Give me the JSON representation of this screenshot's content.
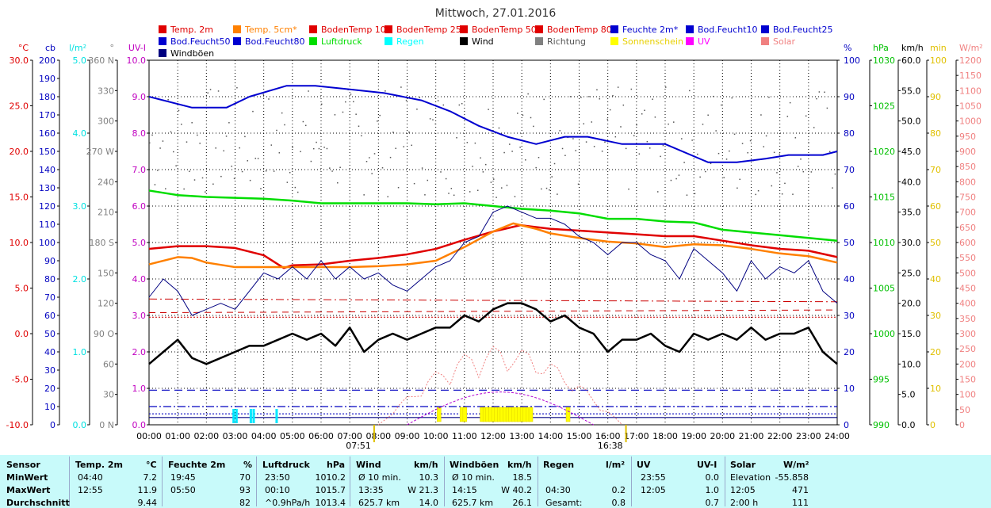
{
  "chart_data": {
    "type": "line",
    "title": "Mittwoch, 27.01.2016",
    "x_ticks": [
      "00:00",
      "01:00",
      "02:00",
      "03:00",
      "04:00",
      "05:00",
      "06:00",
      "07:00",
      "08:00",
      "09:00",
      "10:00",
      "11:00",
      "12:00",
      "13:00",
      "14:00",
      "15:00",
      "16:00",
      "17:00",
      "18:00",
      "19:00",
      "20:00",
      "21:00",
      "22:00",
      "23:00",
      "24:00"
    ],
    "sunrise": "07:51",
    "sunset": "16:38",
    "legend": [
      {
        "label": "Temp. 2m",
        "color": "#e00000"
      },
      {
        "label": "Temp. 5cm*",
        "color": "#ff8000"
      },
      {
        "label": "BodenTemp 10",
        "color": "#e00000"
      },
      {
        "label": "BodenTemp 25",
        "color": "#e00000"
      },
      {
        "label": "BodenTemp 50",
        "color": "#e00000"
      },
      {
        "label": "BodenTemp 80",
        "color": "#e00000"
      },
      {
        "label": "Feuchte 2m*",
        "color": "#0000d0"
      },
      {
        "label": "Bod.Feucht10",
        "color": "#0000d0"
      },
      {
        "label": "Bod.Feucht25",
        "color": "#0000d0"
      },
      {
        "label": "Bod.Feucht50",
        "color": "#0000d0"
      },
      {
        "label": "Bod.Feucht80",
        "color": "#0000d0"
      },
      {
        "label": "Luftdruck",
        "color": "#00dd00"
      },
      {
        "label": "Regen",
        "color": "#00ffff"
      },
      {
        "label": "Wind",
        "color": "#000000"
      },
      {
        "label": "Richtung",
        "color": "#808080"
      },
      {
        "label": "Sonnenschein",
        "color": "#ffff00"
      },
      {
        "label": "UV",
        "color": "#ff00ff"
      },
      {
        "label": "Solar",
        "color": "#f08080"
      },
      {
        "label": "Windböen",
        "color": "#000080"
      }
    ],
    "axes": {
      "temp": {
        "unit": "°C",
        "color": "#e00000",
        "ticks": [
          "30.0",
          "25.0",
          "20.0",
          "15.0",
          "10.0",
          "5.0",
          "0.0",
          "-5.0",
          "-10.0"
        ],
        "range": [
          -10,
          30
        ]
      },
      "cb": {
        "unit": "cb",
        "color": "#0000c0",
        "ticks": [
          "200",
          "190",
          "180",
          "170",
          "160",
          "150",
          "140",
          "130",
          "120",
          "110",
          "100",
          "90",
          "80",
          "70",
          "60",
          "50",
          "40",
          "30",
          "20",
          "10",
          "0"
        ],
        "range": [
          0,
          200
        ]
      },
      "rain": {
        "unit": "l/m²",
        "color": "#00e0e0",
        "ticks": [
          "5.0",
          "4.0",
          "3.0",
          "2.0",
          "1.0",
          "0.0"
        ],
        "range": [
          0,
          5
        ]
      },
      "direction": {
        "unit": "°",
        "color": "#808080",
        "ticks": [
          "360 N",
          "330",
          "300",
          "270 W",
          "240",
          "210",
          "180 S",
          "150",
          "120",
          "90 O",
          "60",
          "30",
          "0 N"
        ],
        "range": [
          0,
          360
        ]
      },
      "uv": {
        "unit": "UV-I",
        "color": "#c000c0",
        "ticks": [
          "10.0",
          "9.0",
          "8.0",
          "7.0",
          "6.0",
          "5.0",
          "4.0",
          "3.0",
          "2.0",
          "1.0",
          "0.0"
        ],
        "range": [
          0,
          10
        ]
      },
      "humidity": {
        "unit": "%",
        "color": "#0000c0",
        "ticks": [
          "100",
          "90",
          "80",
          "70",
          "60",
          "50",
          "40",
          "30",
          "20",
          "10",
          "0"
        ],
        "range": [
          0,
          100
        ]
      },
      "pressure": {
        "unit": "hPa",
        "color": "#00c000",
        "ticks": [
          "1030",
          "1025",
          "1020",
          "1015",
          "1010",
          "1005",
          "1000",
          "995",
          "990"
        ],
        "range": [
          990,
          1030
        ]
      },
      "wind": {
        "unit": "km/h",
        "color": "#000000",
        "ticks": [
          "60.0",
          "55.0",
          "50.0",
          "45.0",
          "40.0",
          "35.0",
          "30.0",
          "25.0",
          "20.0",
          "15.0",
          "10.0",
          "5.0",
          "0.0"
        ],
        "range": [
          0,
          60
        ]
      },
      "minutes": {
        "unit": "min",
        "color": "#e0c000",
        "ticks": [
          "100",
          "90",
          "80",
          "70",
          "60",
          "50",
          "40",
          "30",
          "20",
          "10",
          "0"
        ],
        "range": [
          0,
          100
        ]
      },
      "solar": {
        "unit": "W/m²",
        "color": "#f08080",
        "ticks": [
          "1200",
          "1150",
          "1100",
          "1050",
          "1000",
          "950",
          "900",
          "850",
          "800",
          "750",
          "700",
          "650",
          "600",
          "550",
          "500",
          "450",
          "400",
          "350",
          "300",
          "250",
          "200",
          "150",
          "100",
          "50",
          "0"
        ],
        "range": [
          0,
          1200
        ]
      }
    },
    "series": [
      {
        "name": "Feuchte 2m*",
        "axis": "humidity",
        "color": "#0000d0",
        "x": [
          0,
          1.5,
          2.7,
          3.5,
          4.8,
          5.8,
          7,
          8.2,
          9.5,
          10.5,
          11.5,
          12.5,
          13.5,
          14.5,
          15.3,
          16.5,
          18,
          19.5,
          20.5,
          21.5,
          22.3,
          23.5,
          24
        ],
        "y": [
          90,
          87,
          87,
          90,
          93,
          93,
          92,
          91,
          89,
          86,
          82,
          79,
          77,
          79,
          79,
          77,
          77,
          72,
          72,
          73,
          74,
          74,
          75
        ]
      },
      {
        "name": "Luftdruck",
        "axis": "pressure",
        "color": "#00dd00",
        "x": [
          0,
          1,
          2,
          3,
          4,
          5,
          6,
          7,
          8,
          9,
          10,
          11,
          12,
          13,
          14,
          15,
          16,
          17,
          18,
          19,
          20,
          21,
          22,
          23,
          24
        ],
        "y": [
          1015.7,
          1015.2,
          1015,
          1014.9,
          1014.8,
          1014.6,
          1014.3,
          1014.3,
          1014.3,
          1014.3,
          1014.2,
          1014.3,
          1014,
          1013.7,
          1013.5,
          1013.2,
          1012.6,
          1012.6,
          1012.3,
          1012.2,
          1011.4,
          1011.1,
          1010.8,
          1010.5,
          1010.2
        ]
      },
      {
        "name": "Temp. 2m",
        "axis": "temp",
        "color": "#e00000",
        "x": [
          0,
          1,
          2,
          3,
          4,
          4.7,
          5,
          6,
          7,
          8,
          9,
          10,
          11,
          12,
          12.95,
          14,
          15,
          16,
          17,
          18,
          19,
          20,
          21,
          22,
          23,
          24
        ],
        "y": [
          9.3,
          9.6,
          9.6,
          9.4,
          8.6,
          7.2,
          7.5,
          7.6,
          8.0,
          8.3,
          8.7,
          9.3,
          10.3,
          11.2,
          11.9,
          11.5,
          11.3,
          11.1,
          10.9,
          10.7,
          10.7,
          10.2,
          9.7,
          9.3,
          9.1,
          8.4
        ]
      },
      {
        "name": "Temp. 5cm*",
        "axis": "temp",
        "color": "#ff8000",
        "x": [
          0,
          1,
          1.5,
          2,
          3,
          4,
          5,
          6,
          7,
          8,
          9,
          10,
          11,
          12,
          12.7,
          13.5,
          14,
          15,
          16,
          17,
          18,
          19,
          20,
          21,
          22,
          23,
          24
        ],
        "y": [
          7.6,
          8.4,
          8.3,
          7.8,
          7.3,
          7.3,
          7.3,
          7.3,
          7.3,
          7.4,
          7.6,
          8.0,
          9.5,
          11.2,
          12.1,
          11.5,
          11.0,
          10.5,
          10.1,
          9.9,
          9.5,
          9.8,
          9.7,
          9.3,
          8.8,
          8.5,
          7.8
        ]
      },
      {
        "name": "Wind",
        "axis": "wind",
        "color": "#000000",
        "x": [
          0,
          0.5,
          1,
          1.5,
          2,
          2.5,
          3,
          3.5,
          4,
          4.5,
          5,
          5.5,
          6,
          6.5,
          7,
          7.5,
          8,
          8.5,
          9,
          9.5,
          10,
          10.5,
          11,
          11.5,
          12,
          12.5,
          13,
          13.5,
          14,
          14.5,
          15,
          15.5,
          16,
          16.5,
          17,
          17.5,
          18,
          18.5,
          19,
          19.5,
          20,
          20.5,
          21,
          21.5,
          22,
          22.5,
          23,
          23.5,
          24
        ],
        "y": [
          10,
          12,
          14,
          11,
          10,
          11,
          12,
          13,
          13,
          14,
          15,
          14,
          15,
          13,
          16,
          12,
          14,
          15,
          14,
          15,
          16,
          16,
          18,
          17,
          19,
          20,
          20,
          19,
          17,
          18,
          16,
          15,
          12,
          14,
          14,
          15,
          13,
          12,
          15,
          14,
          15,
          14,
          16,
          14,
          15,
          15,
          16,
          12,
          10
        ]
      },
      {
        "name": "Windböen",
        "axis": "wind",
        "color": "#000080",
        "x": [
          0,
          0.5,
          1,
          1.5,
          2,
          2.5,
          3,
          3.5,
          4,
          4.5,
          5,
          5.5,
          6,
          6.5,
          7,
          7.5,
          8,
          8.5,
          9,
          9.5,
          10,
          10.5,
          11,
          11.5,
          12,
          12.5,
          13,
          13.5,
          14,
          14.5,
          15,
          15.5,
          16,
          16.5,
          17,
          17.5,
          18,
          18.5,
          19,
          19.5,
          20,
          20.5,
          21,
          21.5,
          22,
          22.5,
          23,
          23.5,
          24
        ],
        "y": [
          21,
          24,
          22,
          18,
          19,
          20,
          19,
          22,
          25,
          24,
          26,
          24,
          27,
          24,
          26,
          24,
          25,
          23,
          22,
          24,
          26,
          27,
          30,
          31,
          35,
          36,
          35,
          34,
          34,
          33,
          31,
          30,
          28,
          30,
          30,
          28,
          27,
          24,
          29,
          27,
          25,
          22,
          27,
          24,
          26,
          25,
          27,
          22,
          20
        ]
      }
    ],
    "rain_bars_hours": [
      2.95,
      3.05,
      3.55,
      3.65,
      4.45
    ],
    "sunshine_bars_hours": [
      10.1,
      10.9,
      11.0,
      11.6,
      11.7,
      11.8,
      11.9,
      12.0,
      12.1,
      12.2,
      12.3,
      12.4,
      12.5,
      12.6,
      12.7,
      12.8,
      12.9,
      13.0,
      13.1,
      13.2,
      13.3,
      14.6
    ]
  },
  "stats": {
    "headers": {
      "sensor": "Sensor",
      "temp": "Temp. 2m",
      "temp_unit": "°C",
      "hum": "Feuchte 2m",
      "hum_unit": "%",
      "press": "Luftdruck",
      "press_unit": "hPa",
      "wind": "Wind",
      "wind_unit": "km/h",
      "gust": "Windböen",
      "gust_unit": "km/h",
      "rain": "Regen",
      "rain_unit": "l/m²",
      "uv": "UV",
      "uv_unit": "UV-I",
      "solar": "Solar",
      "solar_unit": "W/m²"
    },
    "rows": [
      {
        "label": "MinWert",
        "temp_t": "04:40",
        "temp_v": "7.2",
        "hum_t": "19:45",
        "hum_v": "70",
        "press_t": "23:50",
        "press_v": "1010.2",
        "wind_t": "Ø 10 min.",
        "wind_v": "10.3",
        "gust_t": "Ø 10 min.",
        "gust_v": "18.5",
        "rain_t": "",
        "rain_v": "",
        "uv_t": "23:55",
        "uv_v": "0.0",
        "solar_t": "Elevation",
        "solar_v": "-55.858"
      },
      {
        "label": "MaxWert",
        "temp_t": "12:55",
        "temp_v": "11.9",
        "hum_t": "05:50",
        "hum_v": "93",
        "press_t": "00:10",
        "press_v": "1015.7",
        "wind_t": "13:35",
        "wind_v": "W 21.3",
        "gust_t": "14:15",
        "gust_v": "W 40.2",
        "rain_t": "04:30",
        "rain_v": "0.2",
        "uv_t": "12:05",
        "uv_v": "1.0",
        "solar_t": "12:05",
        "solar_v": "471"
      },
      {
        "label": "Durchschnitt",
        "temp_t": "",
        "temp_v": "9.44",
        "hum_t": "",
        "hum_v": "82",
        "press_t": "^0.9hPa/h",
        "press_v": "1013.4",
        "wind_t": "625.7 km",
        "wind_v": "14.0",
        "gust_t": "625.7 km",
        "gust_v": "26.1",
        "rain_t": "Gesamt:",
        "rain_v": "0.8",
        "uv_t": "",
        "uv_v": "0.7",
        "solar_t": "2:00 h",
        "solar_v": "111"
      }
    ]
  }
}
